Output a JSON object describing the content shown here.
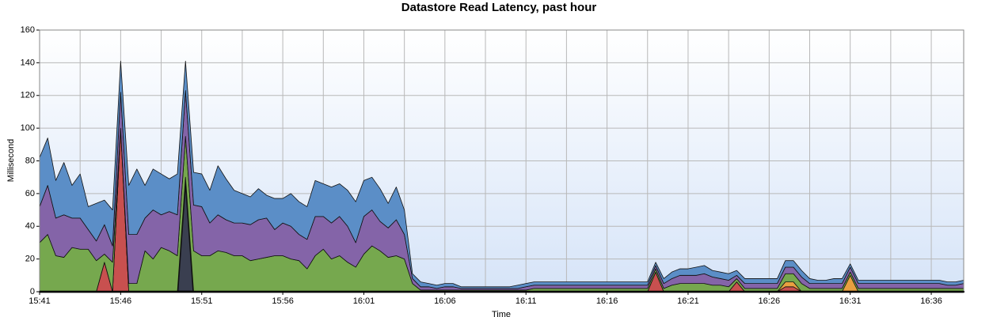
{
  "chart_data": {
    "type": "stacked_area",
    "title": "Datastore Read Latency, past hour",
    "y_label": "Millisecond",
    "x_label": "Time",
    "categories": [
      "15:41",
      null,
      null,
      null,
      null,
      null,
      null,
      null,
      null,
      null,
      "15:46",
      null,
      null,
      null,
      null,
      null,
      null,
      null,
      null,
      null,
      "15:51",
      null,
      null,
      null,
      null,
      null,
      null,
      null,
      null,
      null,
      "15:56",
      null,
      null,
      null,
      null,
      null,
      null,
      null,
      null,
      null,
      "16:01",
      null,
      null,
      null,
      null,
      null,
      null,
      null,
      null,
      null,
      "16:06",
      null,
      null,
      null,
      null,
      null,
      null,
      null,
      null,
      null,
      "16:11",
      null,
      null,
      null,
      null,
      null,
      null,
      null,
      null,
      null,
      "16:16",
      null,
      null,
      null,
      null,
      null,
      null,
      null,
      null,
      null,
      "16:21",
      null,
      null,
      null,
      null,
      null,
      null,
      null,
      null,
      null,
      "16:26",
      null,
      null,
      null,
      null,
      null,
      null,
      null,
      null,
      null,
      "16:31",
      null,
      null,
      null,
      null,
      null,
      null,
      null,
      null,
      null,
      "16:36",
      null,
      null,
      null,
      null
    ],
    "ylim": [
      0,
      160
    ],
    "yticks": [
      0,
      20,
      40,
      60,
      80,
      100,
      120,
      140,
      160
    ],
    "grid": true,
    "series": [
      {
        "color": "#3a3f50",
        "values": [
          0,
          0,
          0,
          0,
          0,
          0,
          0,
          0,
          0,
          0,
          0,
          0,
          0,
          0,
          0,
          0,
          0,
          0,
          70,
          0,
          0,
          0,
          0,
          0,
          0,
          0,
          0,
          0,
          0,
          0,
          0,
          0,
          0,
          0,
          0,
          0,
          0,
          0,
          0,
          0,
          0,
          0,
          0,
          0,
          0,
          0,
          0,
          0,
          0,
          0,
          0,
          0,
          0,
          0,
          0,
          0,
          0,
          0,
          0,
          0,
          0,
          0,
          0,
          0,
          0,
          0,
          0,
          0,
          0,
          0,
          0,
          0,
          0,
          0,
          0,
          0,
          0,
          0,
          0,
          0,
          0,
          0,
          0,
          0,
          0,
          0,
          0,
          0,
          0,
          0,
          0,
          0,
          0,
          0,
          0,
          0,
          0,
          0,
          0,
          0,
          0,
          0,
          0,
          0,
          0,
          0,
          0,
          0,
          0,
          0,
          0,
          0,
          0,
          0,
          0
        ]
      },
      {
        "color": "#c8504f",
        "values": [
          0,
          0,
          0,
          0,
          0,
          0,
          0,
          0,
          18,
          0,
          100,
          0,
          0,
          0,
          0,
          0,
          0,
          0,
          0,
          0,
          0,
          0,
          0,
          0,
          0,
          0,
          0,
          0,
          0,
          0,
          0,
          0,
          0,
          0,
          0,
          0,
          0,
          0,
          0,
          0,
          0,
          0,
          0,
          0,
          0,
          0,
          0,
          0,
          0,
          0,
          0,
          0,
          0,
          0,
          0,
          0,
          0,
          0,
          0,
          0,
          0,
          0,
          0,
          0,
          0,
          0,
          0,
          0,
          0,
          0,
          0,
          0,
          0,
          0,
          0,
          0,
          12,
          0,
          0,
          0,
          0,
          0,
          0,
          0,
          0,
          0,
          6,
          0,
          0,
          0,
          0,
          0,
          3,
          3,
          0,
          0,
          0,
          0,
          0,
          0,
          0,
          0,
          0,
          0,
          0,
          0,
          0,
          0,
          0,
          0,
          0,
          0,
          0,
          0,
          0
        ]
      },
      {
        "color": "#e8a040",
        "values": [
          0,
          0,
          0,
          0,
          0,
          0,
          0,
          0,
          0,
          0,
          0,
          0,
          0,
          0,
          0,
          0,
          0,
          0,
          0,
          0,
          0,
          0,
          0,
          0,
          0,
          0,
          0,
          0,
          0,
          0,
          0,
          0,
          0,
          0,
          0,
          0,
          0,
          0,
          0,
          0,
          0,
          0,
          0,
          0,
          0,
          0,
          0,
          0,
          0,
          0,
          0,
          0,
          0,
          0,
          0,
          0,
          0,
          0,
          0,
          0,
          0,
          0,
          0,
          0,
          0,
          0,
          0,
          0,
          0,
          0,
          0,
          0,
          0,
          0,
          0,
          0,
          0,
          0,
          0,
          0,
          0,
          0,
          0,
          0,
          0,
          0,
          0,
          0,
          0,
          0,
          0,
          0,
          3,
          3,
          0,
          0,
          0,
          0,
          0,
          0,
          10,
          0,
          0,
          0,
          0,
          0,
          0,
          0,
          0,
          0,
          0,
          0,
          0,
          0,
          0
        ]
      },
      {
        "color": "#76a84e",
        "values": [
          30,
          35,
          22,
          21,
          27,
          26,
          26,
          19,
          5,
          18,
          0,
          5,
          5,
          25,
          20,
          27,
          25,
          22,
          25,
          25,
          22,
          22,
          25,
          24,
          22,
          22,
          19,
          20,
          21,
          22,
          22,
          20,
          19,
          14,
          22,
          26,
          20,
          22,
          18,
          15,
          23,
          28,
          25,
          21,
          22,
          20,
          5,
          1,
          1,
          1,
          1,
          1,
          1,
          1,
          1,
          1,
          1,
          1,
          1,
          1,
          1,
          2,
          2,
          2,
          2,
          2,
          2,
          2,
          2,
          2,
          2,
          2,
          2,
          2,
          2,
          2,
          2,
          2,
          4,
          5,
          5,
          5,
          5,
          4,
          4,
          3,
          2,
          2,
          2,
          2,
          2,
          2,
          5,
          5,
          5,
          2,
          2,
          2,
          2,
          2,
          2,
          2,
          2,
          2,
          2,
          2,
          2,
          2,
          2,
          2,
          2,
          2,
          2,
          2,
          2
        ]
      },
      {
        "color": "#8464a8",
        "values": [
          22,
          30,
          23,
          26,
          18,
          19,
          12,
          12,
          18,
          10,
          22,
          30,
          30,
          20,
          30,
          20,
          24,
          25,
          28,
          28,
          30,
          20,
          22,
          20,
          20,
          20,
          22,
          24,
          24,
          16,
          20,
          20,
          16,
          18,
          24,
          20,
          22,
          24,
          22,
          15,
          23,
          22,
          18,
          18,
          22,
          15,
          3,
          2,
          2,
          1,
          2,
          2,
          1,
          1,
          1,
          1,
          1,
          1,
          1,
          1,
          2,
          2,
          2,
          2,
          2,
          2,
          2,
          2,
          2,
          2,
          2,
          2,
          2,
          2,
          2,
          2,
          2,
          3,
          4,
          5,
          5,
          5,
          6,
          5,
          4,
          4,
          2,
          3,
          3,
          3,
          3,
          3,
          4,
          4,
          4,
          3,
          3,
          3,
          3,
          3,
          3,
          3,
          3,
          3,
          3,
          3,
          3,
          3,
          3,
          3,
          3,
          3,
          2,
          2,
          3
        ]
      },
      {
        "color": "#5b8ec7",
        "values": [
          30,
          29,
          23,
          32,
          20,
          27,
          14,
          23,
          15,
          22,
          19,
          30,
          40,
          20,
          25,
          25,
          20,
          25,
          18,
          20,
          20,
          20,
          30,
          25,
          20,
          18,
          17,
          19,
          14,
          19,
          15,
          20,
          20,
          20,
          22,
          20,
          22,
          20,
          22,
          25,
          22,
          20,
          20,
          15,
          20,
          15,
          3,
          3,
          2,
          2,
          2,
          2,
          1,
          1,
          1,
          1,
          1,
          1,
          1,
          2,
          2,
          2,
          2,
          2,
          2,
          2,
          2,
          2,
          2,
          2,
          2,
          2,
          2,
          2,
          2,
          2,
          2,
          3,
          4,
          4,
          4,
          5,
          5,
          4,
          4,
          4,
          3,
          3,
          3,
          3,
          3,
          3,
          4,
          4,
          4,
          3,
          2,
          2,
          3,
          3,
          2,
          2,
          2,
          2,
          2,
          2,
          2,
          2,
          2,
          2,
          2,
          2,
          2,
          2,
          2
        ]
      }
    ]
  }
}
